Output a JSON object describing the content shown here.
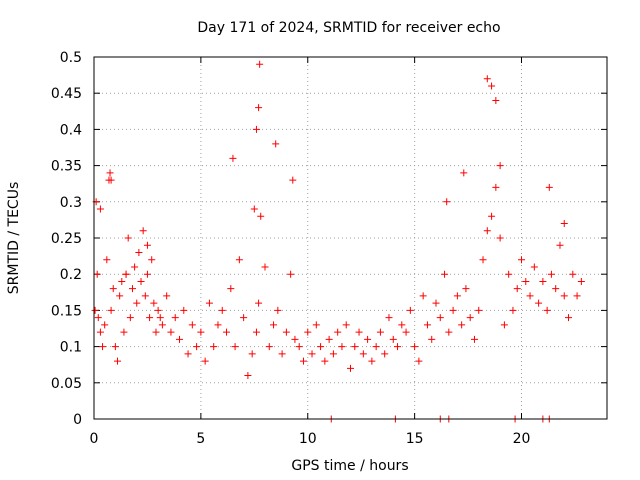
{
  "chart_data": {
    "type": "scatter",
    "title": "Day 171 of 2024, SRMTID for receiver echo",
    "xlabel": "GPS time / hours",
    "ylabel": "SRMTID / TECUs",
    "xlim": [
      0,
      24
    ],
    "ylim": [
      0,
      0.5
    ],
    "x_ticks": [
      0,
      5,
      10,
      15,
      20
    ],
    "x_tick_labels": [
      "0",
      "5",
      "10",
      "15",
      "20"
    ],
    "y_ticks": [
      0,
      0.05,
      0.1,
      0.15,
      0.2,
      0.25,
      0.3,
      0.35,
      0.4,
      0.45,
      0.5
    ],
    "y_tick_labels": [
      "0",
      "0.05",
      "0.1",
      "0.15",
      "0.2",
      "0.25",
      "0.3",
      "0.35",
      "0.4",
      "0.45",
      "0.5"
    ],
    "grid": true,
    "marker": "+",
    "color": "#ff0000",
    "series": [
      {
        "name": "SRMTID",
        "x": [
          0.05,
          0.1,
          0.15,
          0.2,
          0.3,
          0.4,
          0.5,
          0.6,
          0.7,
          0.75,
          0.8,
          0.9,
          1.0,
          1.1,
          1.2,
          1.3,
          1.4,
          1.5,
          1.6,
          1.7,
          1.8,
          1.9,
          2.0,
          2.1,
          2.2,
          2.3,
          2.4,
          2.5,
          2.6,
          2.7,
          2.8,
          2.9,
          3.0,
          3.2,
          3.4,
          3.6,
          3.8,
          4.0,
          4.2,
          4.4,
          4.6,
          4.8,
          5.0,
          5.2,
          5.4,
          5.6,
          5.8,
          6.0,
          6.2,
          6.4,
          6.6,
          6.8,
          7.0,
          7.2,
          7.4,
          7.6,
          7.7,
          7.8,
          8.0,
          8.2,
          8.4,
          8.6,
          8.8,
          9.0,
          9.2,
          9.4,
          9.6,
          9.8,
          10.0,
          10.2,
          10.4,
          10.6,
          10.8,
          11.0,
          11.2,
          11.4,
          11.6,
          11.8,
          12.0,
          12.2,
          12.4,
          12.6,
          12.8,
          13.0,
          13.2,
          13.4,
          13.6,
          13.8,
          14.0,
          14.2,
          14.4,
          14.6,
          14.8,
          15.0,
          15.2,
          15.4,
          15.6,
          15.8,
          16.0,
          16.2,
          16.4,
          16.6,
          16.8,
          17.0,
          17.2,
          17.4,
          17.6,
          17.8,
          18.0,
          18.2,
          18.4,
          18.6,
          18.8,
          19.0,
          19.2,
          19.4,
          19.6,
          19.8,
          20.0,
          20.2,
          20.4,
          20.6,
          20.8,
          21.0,
          21.2,
          21.4,
          21.6,
          21.8,
          22.0,
          22.2,
          22.4,
          22.6,
          22.8,
          0.3,
          0.8,
          1.5,
          2.5,
          3.1,
          6.5,
          7.5,
          7.6,
          7.7,
          7.75,
          8.5,
          9.3,
          16.5,
          17.3,
          18.4,
          18.6,
          18.8,
          19.0,
          21.3,
          22.0,
          11.1,
          14.1,
          16.2,
          16.6,
          19.7,
          21.0,
          21.3
        ],
        "y": [
          0.15,
          0.3,
          0.2,
          0.14,
          0.12,
          0.1,
          0.13,
          0.22,
          0.33,
          0.34,
          0.15,
          0.18,
          0.1,
          0.08,
          0.17,
          0.19,
          0.12,
          0.2,
          0.25,
          0.14,
          0.18,
          0.21,
          0.16,
          0.23,
          0.19,
          0.26,
          0.17,
          0.2,
          0.14,
          0.22,
          0.16,
          0.12,
          0.15,
          0.13,
          0.17,
          0.12,
          0.14,
          0.11,
          0.15,
          0.09,
          0.13,
          0.1,
          0.12,
          0.08,
          0.16,
          0.1,
          0.13,
          0.15,
          0.12,
          0.18,
          0.1,
          0.22,
          0.14,
          0.06,
          0.09,
          0.12,
          0.16,
          0.28,
          0.21,
          0.1,
          0.13,
          0.15,
          0.09,
          0.12,
          0.2,
          0.11,
          0.1,
          0.08,
          0.12,
          0.09,
          0.13,
          0.1,
          0.08,
          0.11,
          0.09,
          0.12,
          0.1,
          0.13,
          0.07,
          0.1,
          0.12,
          0.09,
          0.11,
          0.08,
          0.1,
          0.12,
          0.09,
          0.14,
          0.11,
          0.1,
          0.13,
          0.12,
          0.15,
          0.1,
          0.08,
          0.17,
          0.13,
          0.11,
          0.16,
          0.14,
          0.2,
          0.12,
          0.15,
          0.17,
          0.13,
          0.18,
          0.14,
          0.11,
          0.15,
          0.22,
          0.26,
          0.28,
          0.32,
          0.25,
          0.13,
          0.2,
          0.15,
          0.18,
          0.22,
          0.19,
          0.17,
          0.21,
          0.16,
          0.19,
          0.15,
          0.2,
          0.18,
          0.24,
          0.17,
          0.14,
          0.2,
          0.17,
          0.19,
          0.29,
          0.33,
          0.2,
          0.24,
          0.14,
          0.36,
          0.29,
          0.4,
          0.43,
          0.49,
          0.38,
          0.33,
          0.3,
          0.34,
          0.47,
          0.46,
          0.44,
          0.35,
          0.32,
          0.27,
          0,
          0,
          0,
          0,
          0,
          0,
          0
        ]
      }
    ]
  }
}
